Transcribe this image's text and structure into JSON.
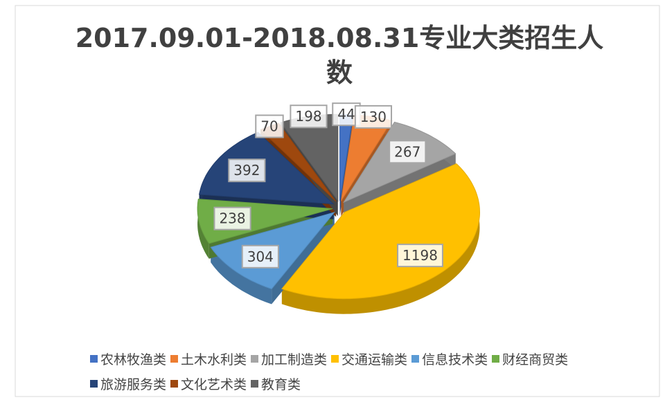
{
  "chart_data": {
    "type": "pie",
    "title": "2017.09.01-2018.08.31专业大类招生人数",
    "categories": [
      "农林牧渔类",
      "土木水利类",
      "加工制造类",
      "交通运输类",
      "信息技术类",
      "财经商贸类",
      "旅游服务类",
      "文化艺术类",
      "教育类"
    ],
    "values": [
      44,
      130,
      267,
      1198,
      304,
      238,
      392,
      70,
      198
    ],
    "colors": [
      "#4472c4",
      "#ed7d31",
      "#a5a5a5",
      "#ffc000",
      "#5b9bd5",
      "#70ad47",
      "#264478",
      "#9e480e",
      "#636363"
    ],
    "legend": "bottom"
  }
}
